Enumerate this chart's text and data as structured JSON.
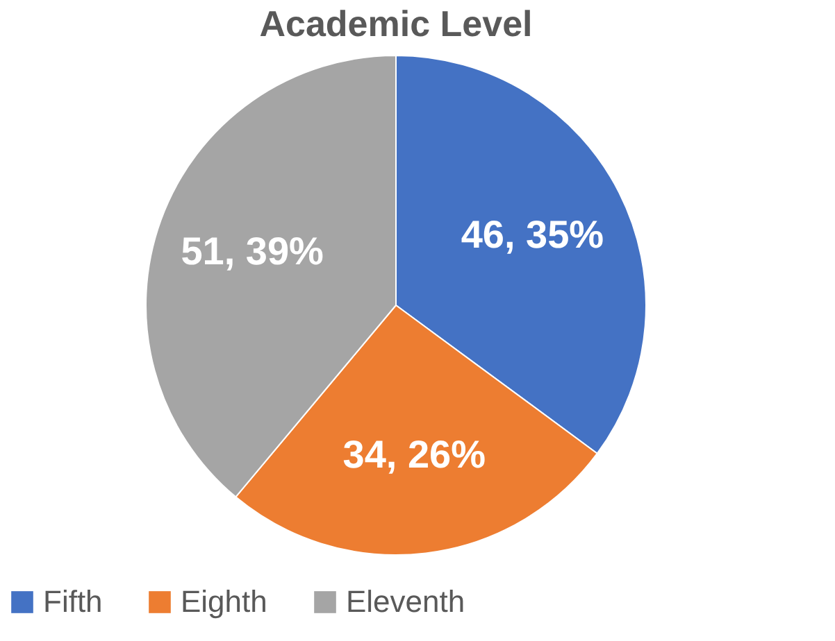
{
  "chart_data": {
    "type": "pie",
    "title": "Academic Level",
    "categories": [
      "Fifth",
      "Eighth",
      "Eleventh"
    ],
    "values": [
      46,
      34,
      51
    ],
    "colors": [
      "#4472c4",
      "#ed7d31",
      "#a5a5a5"
    ],
    "value_labels": [
      "46, 35%",
      "34, 26%",
      "51, 39%"
    ],
    "legend": "bottom"
  }
}
